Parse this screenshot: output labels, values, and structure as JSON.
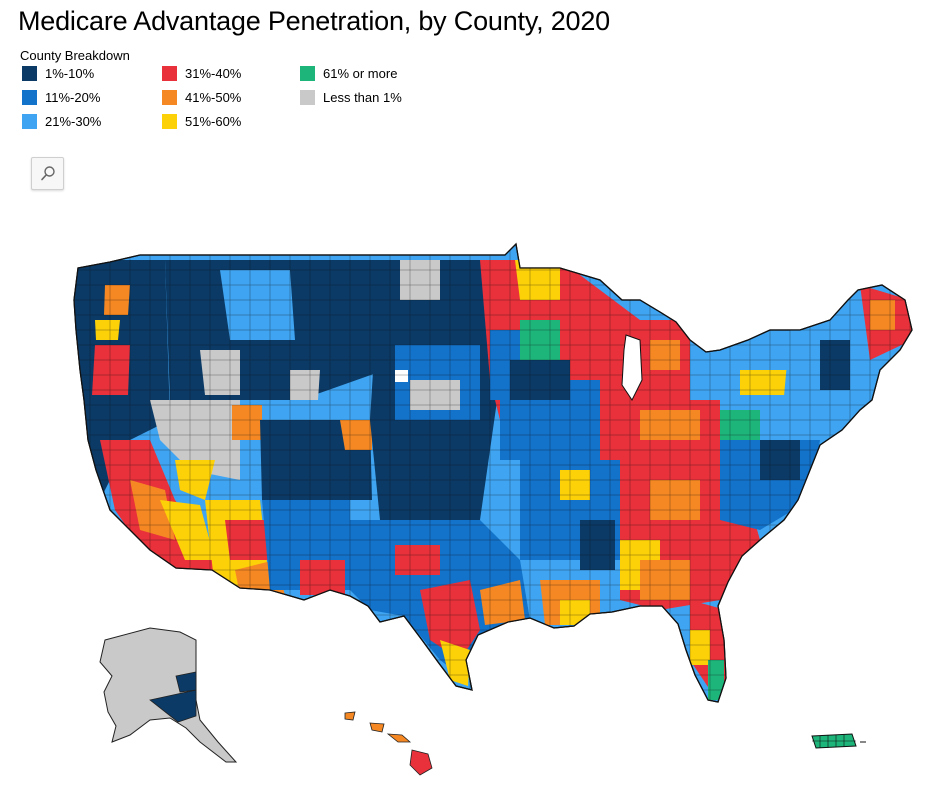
{
  "title": "Medicare Advantage Penetration, by County, 2020",
  "legend": {
    "title": "County Breakdown",
    "items": [
      {
        "label": "1%-10%",
        "color": "#0b3a66"
      },
      {
        "label": "11%-20%",
        "color": "#1372c9"
      },
      {
        "label": "21%-30%",
        "color": "#3fa5f2"
      },
      {
        "label": "31%-40%",
        "color": "#e8313b"
      },
      {
        "label": "41%-50%",
        "color": "#f58823"
      },
      {
        "label": "51%-60%",
        "color": "#fdd107"
      },
      {
        "label": "61% or more",
        "color": "#1db57a"
      },
      {
        "label": "Less than 1%",
        "color": "#c9c9c9"
      }
    ]
  },
  "controls": {
    "zoom_icon": "search-icon"
  },
  "map": {
    "regions": [
      "contiguous-us",
      "alaska",
      "hawaii",
      "puerto-rico"
    ],
    "border_color": "#1a1a1a"
  }
}
